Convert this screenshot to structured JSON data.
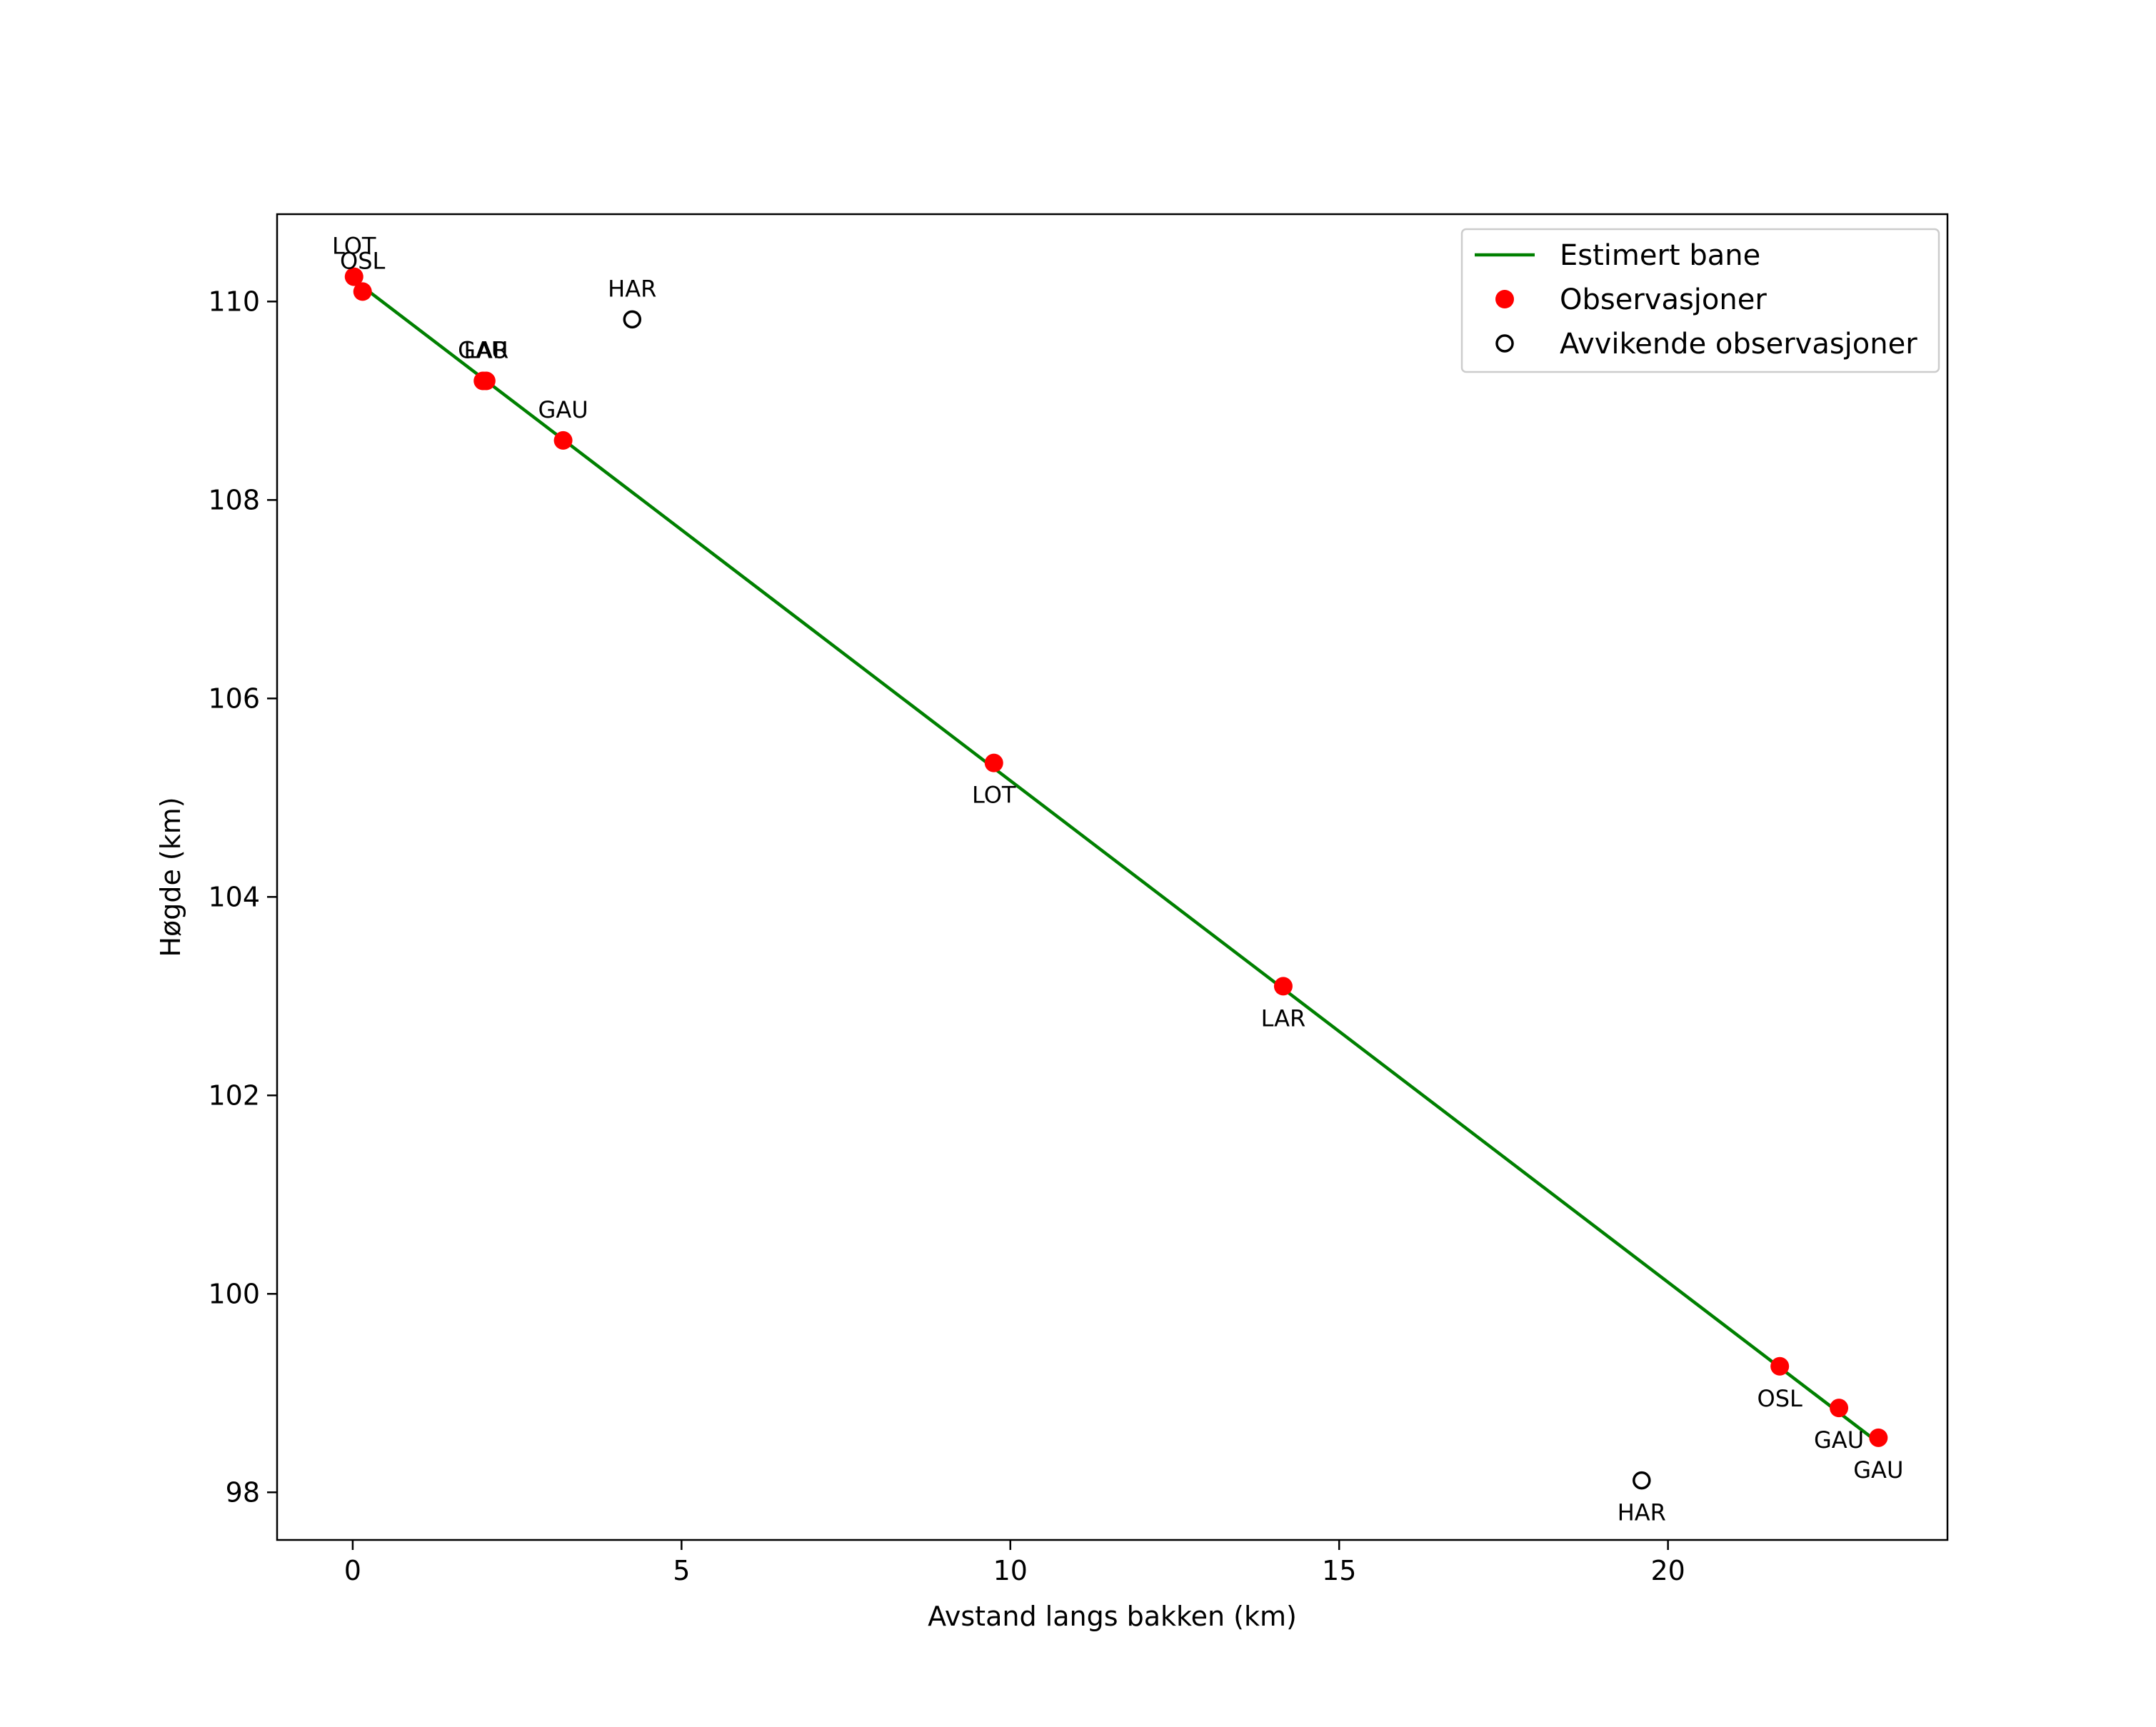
{
  "chart_data": {
    "type": "line",
    "title": "",
    "xlabel": "Avstand langs bakken (km)",
    "ylabel": "Høgde (km)",
    "xlim": [
      -1.15,
      24.25
    ],
    "ylim": [
      97.52,
      110.88
    ],
    "xticks": [
      0,
      5,
      10,
      15,
      20
    ],
    "yticks": [
      98,
      100,
      102,
      104,
      106,
      108,
      110
    ],
    "grid": false,
    "legend_position": "top-right",
    "colors": {
      "line": "#008000",
      "observation": "#ff0000",
      "outlier_edge": "#000000"
    },
    "series": [
      {
        "name": "Estimert bane",
        "kind": "line",
        "points": [
          {
            "x": 0.15,
            "y": 110.15
          },
          {
            "x": 23.2,
            "y": 98.5
          }
        ]
      },
      {
        "name": "Observasjoner",
        "kind": "scatter",
        "points": [
          {
            "x": 0.02,
            "y": 110.25,
            "label": "LOT"
          },
          {
            "x": 0.15,
            "y": 110.1,
            "label": "OSL"
          },
          {
            "x": 1.98,
            "y": 109.2,
            "label": "GAU"
          },
          {
            "x": 2.03,
            "y": 109.2,
            "label": "LAR"
          },
          {
            "x": 3.2,
            "y": 108.6,
            "label": "GAU"
          },
          {
            "x": 9.75,
            "y": 105.35,
            "label": "LOT"
          },
          {
            "x": 14.15,
            "y": 103.1,
            "label": "LAR"
          },
          {
            "x": 21.7,
            "y": 99.27,
            "label": "OSL"
          },
          {
            "x": 22.6,
            "y": 98.85,
            "label": "GAU"
          },
          {
            "x": 23.2,
            "y": 98.55,
            "label": "GAU"
          }
        ]
      },
      {
        "name": "Avvikende observasjoner",
        "kind": "scatter",
        "points": [
          {
            "x": 4.25,
            "y": 109.82,
            "label": "HAR"
          },
          {
            "x": 19.6,
            "y": 98.12,
            "label": "HAR"
          }
        ]
      }
    ]
  }
}
